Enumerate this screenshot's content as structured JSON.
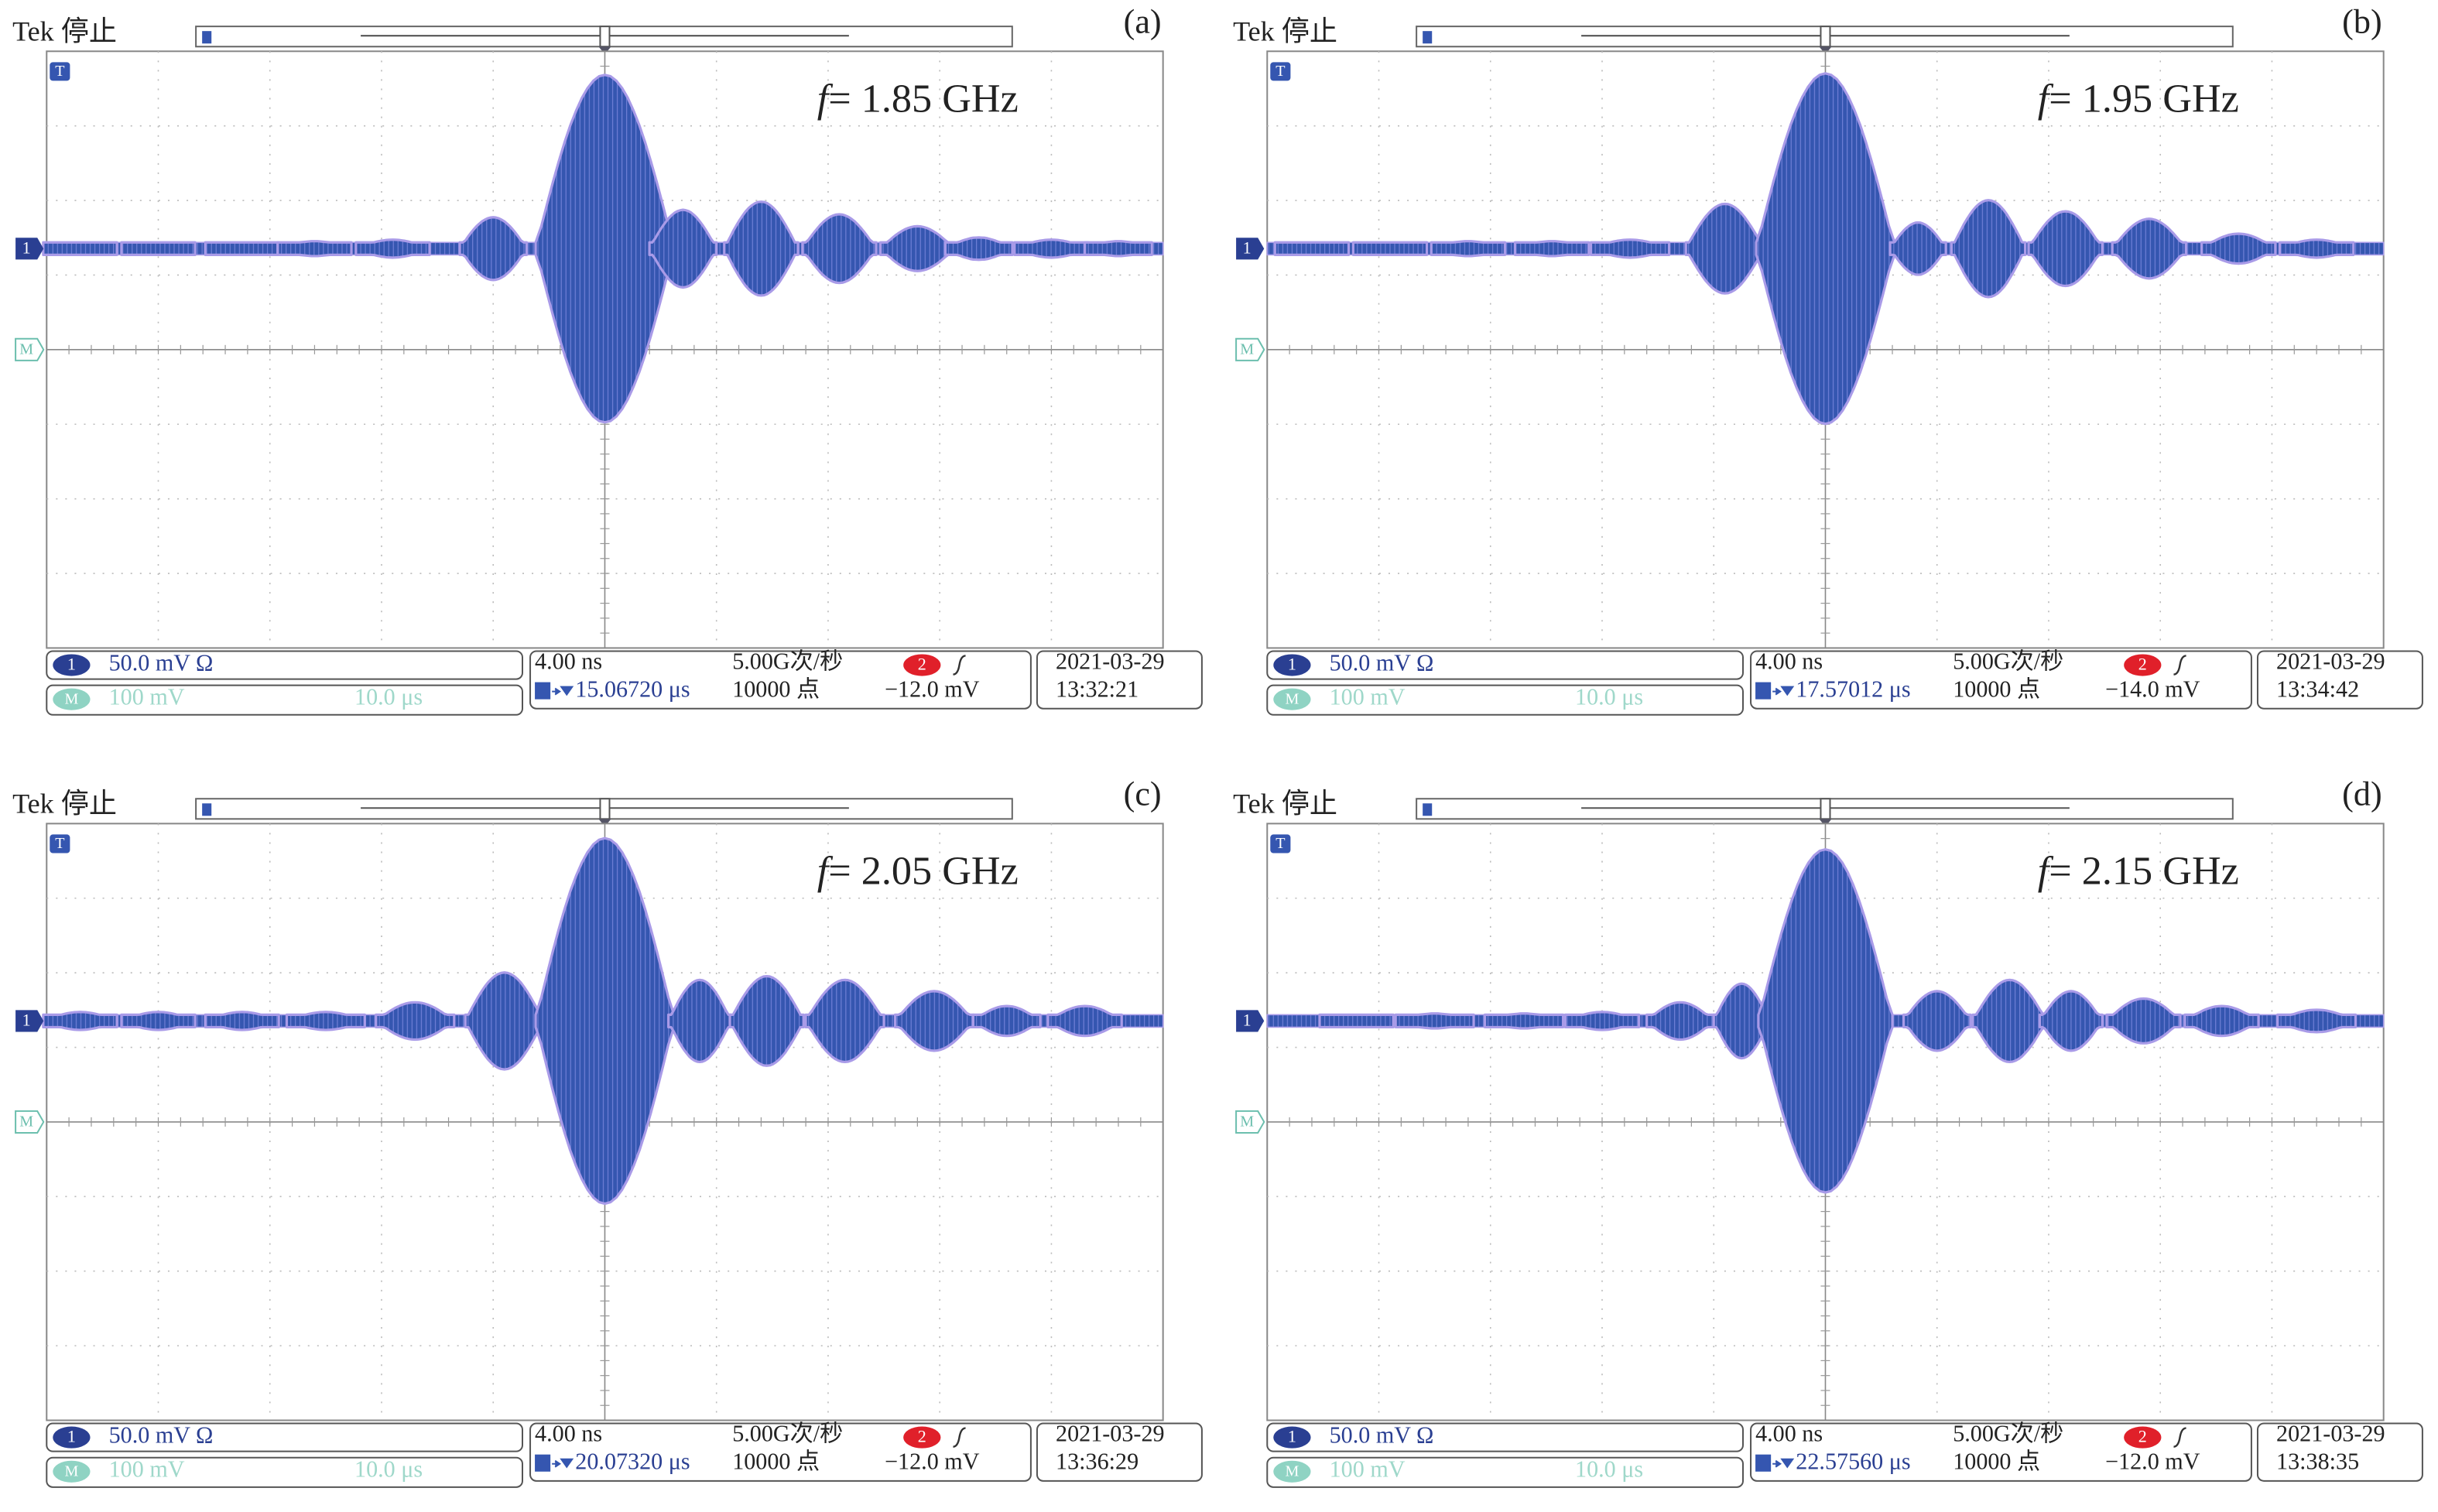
{
  "markers": {
    "trigger": "T",
    "ch1": "1",
    "math": "M",
    "ch2": "2"
  },
  "panels": [
    {
      "status": "Tek 停止",
      "label": "(a)",
      "frequency_symbol": "f",
      "frequency": "= 1.85 GHz",
      "ch1_scale": "50.0 mV Ω",
      "math_scale": "100 mV",
      "math_time": "10.0 μs",
      "timebase": "4.00 ns",
      "sample_rate": "5.00G次/秒",
      "trigger_position": "15.06720 μs",
      "record_length": "10000 点",
      "trigger_level": "−12.0 mV",
      "date": "2021-03-29",
      "time": "13:32:21",
      "lobes": [
        {
          "t": -4.7,
          "a": 0.08,
          "w": 0.33
        },
        {
          "t": -4.0,
          "a": 0.08,
          "w": 0.33
        },
        {
          "t": -3.25,
          "a": 0.08,
          "w": 0.33
        },
        {
          "t": -2.6,
          "a": 0.1,
          "w": 0.33
        },
        {
          "t": -1.9,
          "a": 0.12,
          "w": 0.33
        },
        {
          "t": -1.0,
          "a": 0.42,
          "w": 0.3
        },
        {
          "t": 0,
          "a": 2.33,
          "w": 0.62
        },
        {
          "t": 0.7,
          "a": 0.52,
          "w": 0.3
        },
        {
          "t": 1.4,
          "a": 0.63,
          "w": 0.33
        },
        {
          "t": 2.1,
          "a": 0.46,
          "w": 0.33
        },
        {
          "t": 2.8,
          "a": 0.3,
          "w": 0.33
        },
        {
          "t": 3.35,
          "a": 0.15,
          "w": 0.3
        },
        {
          "t": 4.0,
          "a": 0.12,
          "w": 0.33
        },
        {
          "t": 4.6,
          "a": 0.1,
          "w": 0.3
        }
      ]
    },
    {
      "status": "Tek 停止",
      "label": "(b)",
      "frequency_symbol": "f",
      "frequency": "= 1.95 GHz",
      "ch1_scale": "50.0 mV Ω",
      "math_scale": "100 mV",
      "math_time": "10.0 μs",
      "timebase": "4.00 ns",
      "sample_rate": "5.00G次/秒",
      "trigger_position": "17.57012 μs",
      "record_length": "10000 点",
      "trigger_level": "−14.0 mV",
      "date": "2021-03-29",
      "time": "13:34:42",
      "lobes": [
        {
          "t": -4.6,
          "a": 0.08,
          "w": 0.33
        },
        {
          "t": -3.9,
          "a": 0.08,
          "w": 0.33
        },
        {
          "t": -3.2,
          "a": 0.1,
          "w": 0.33
        },
        {
          "t": -2.45,
          "a": 0.1,
          "w": 0.33
        },
        {
          "t": -1.75,
          "a": 0.12,
          "w": 0.35
        },
        {
          "t": -0.9,
          "a": 0.6,
          "w": 0.35
        },
        {
          "t": 0,
          "a": 2.35,
          "w": 0.62
        },
        {
          "t": 0.83,
          "a": 0.35,
          "w": 0.25
        },
        {
          "t": 1.46,
          "a": 0.65,
          "w": 0.33
        },
        {
          "t": 2.15,
          "a": 0.5,
          "w": 0.33
        },
        {
          "t": 2.9,
          "a": 0.4,
          "w": 0.33
        },
        {
          "t": 3.7,
          "a": 0.2,
          "w": 0.33
        },
        {
          "t": 4.4,
          "a": 0.12,
          "w": 0.33
        }
      ]
    },
    {
      "status": "Tek 停止",
      "label": "(c)",
      "frequency_symbol": "f",
      "frequency": "= 2.05 GHz",
      "ch1_scale": "50.0 mV Ω",
      "math_scale": "100 mV",
      "math_time": "10.0 μs",
      "timebase": "4.00 ns",
      "sample_rate": "5.00G次/秒",
      "trigger_position": "20.07320 μs",
      "record_length": "10000 点",
      "trigger_level": "−12.0 mV",
      "date": "2021-03-29",
      "time": "13:36:29",
      "lobes": [
        {
          "t": -4.7,
          "a": 0.12,
          "w": 0.33
        },
        {
          "t": -4.0,
          "a": 0.12,
          "w": 0.33
        },
        {
          "t": -3.25,
          "a": 0.12,
          "w": 0.33
        },
        {
          "t": -2.5,
          "a": 0.12,
          "w": 0.35
        },
        {
          "t": -1.7,
          "a": 0.25,
          "w": 0.35
        },
        {
          "t": -0.9,
          "a": 0.65,
          "w": 0.35
        },
        {
          "t": 0,
          "a": 2.45,
          "w": 0.62
        },
        {
          "t": 0.85,
          "a": 0.55,
          "w": 0.28
        },
        {
          "t": 1.45,
          "a": 0.6,
          "w": 0.33
        },
        {
          "t": 2.15,
          "a": 0.55,
          "w": 0.35
        },
        {
          "t": 2.95,
          "a": 0.4,
          "w": 0.35
        },
        {
          "t": 3.6,
          "a": 0.2,
          "w": 0.3
        },
        {
          "t": 4.3,
          "a": 0.2,
          "w": 0.33
        }
      ]
    },
    {
      "status": "Tek 停止",
      "label": "(d)",
      "frequency_symbol": "f",
      "frequency": "= 2.15 GHz",
      "ch1_scale": "50.0 mV Ω",
      "math_scale": "100 mV",
      "math_time": "10.0 μs",
      "timebase": "4.00 ns",
      "sample_rate": "5.00G次/秒",
      "trigger_position": "22.57560 μs",
      "record_length": "10000 点",
      "trigger_level": "−12.0 mV",
      "date": "2021-03-29",
      "time": "13:38:35",
      "lobes": [
        {
          "t": -4.2,
          "a": 0.08,
          "w": 0.33
        },
        {
          "t": -3.5,
          "a": 0.1,
          "w": 0.35
        },
        {
          "t": -2.7,
          "a": 0.1,
          "w": 0.35
        },
        {
          "t": -2.0,
          "a": 0.12,
          "w": 0.33
        },
        {
          "t": -1.3,
          "a": 0.25,
          "w": 0.3
        },
        {
          "t": -0.75,
          "a": 0.5,
          "w": 0.25
        },
        {
          "t": 0,
          "a": 2.3,
          "w": 0.6
        },
        {
          "t": 1.0,
          "a": 0.4,
          "w": 0.3
        },
        {
          "t": 1.65,
          "a": 0.55,
          "w": 0.33
        },
        {
          "t": 2.2,
          "a": 0.4,
          "w": 0.28
        },
        {
          "t": 2.85,
          "a": 0.3,
          "w": 0.33
        },
        {
          "t": 3.55,
          "a": 0.2,
          "w": 0.33
        },
        {
          "t": 4.4,
          "a": 0.15,
          "w": 0.35
        }
      ]
    }
  ]
}
